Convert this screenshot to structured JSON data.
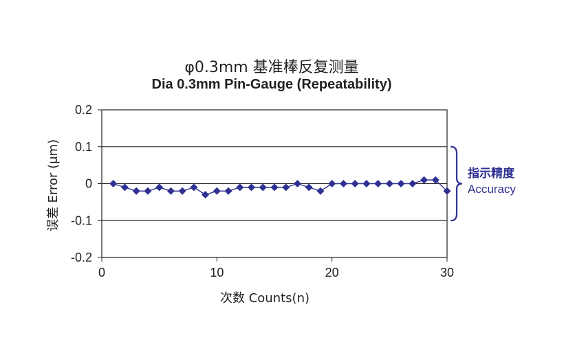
{
  "chart_data": {
    "type": "line",
    "title_cn": "φ0.3mm 基准棒反复测量",
    "title": "Dia 0.3mm Pin-Gauge (Repeatability)",
    "xlabel": "次数 Counts(n)",
    "ylabel": "误差 Error (μm)",
    "xlim": [
      0,
      30
    ],
    "ylim": [
      -0.2,
      0.2
    ],
    "xticks": [
      0,
      10,
      20,
      30
    ],
    "xtick_labels": [
      "0",
      "10",
      "20",
      "30"
    ],
    "yticks": [
      0.2,
      0.1,
      0,
      -0.1,
      -0.2
    ],
    "ytick_labels": [
      "0.2",
      "0.1",
      "0",
      "-0.1",
      "-0.2"
    ],
    "grid": "horizontal",
    "x": [
      1,
      2,
      3,
      4,
      5,
      6,
      7,
      8,
      9,
      10,
      11,
      12,
      13,
      14,
      15,
      16,
      17,
      18,
      19,
      20,
      21,
      22,
      23,
      24,
      25,
      26,
      27,
      28,
      29,
      30
    ],
    "series": [
      {
        "values": [
          0,
          -0.01,
          -0.02,
          -0.02,
          -0.01,
          -0.02,
          -0.02,
          -0.01,
          -0.03,
          -0.02,
          -0.02,
          -0.01,
          -0.01,
          -0.01,
          -0.01,
          -0.01,
          0,
          -0.01,
          -0.02,
          0,
          0,
          0,
          0,
          0,
          0,
          0,
          0,
          0.01,
          0.01,
          -0.02
        ],
        "color": "#2e3192"
      }
    ],
    "annotation": {
      "label_cn": "指示精度",
      "label_en": "Accuracy",
      "range": [
        -0.1,
        0.1
      ],
      "color": "#2e3192"
    }
  }
}
